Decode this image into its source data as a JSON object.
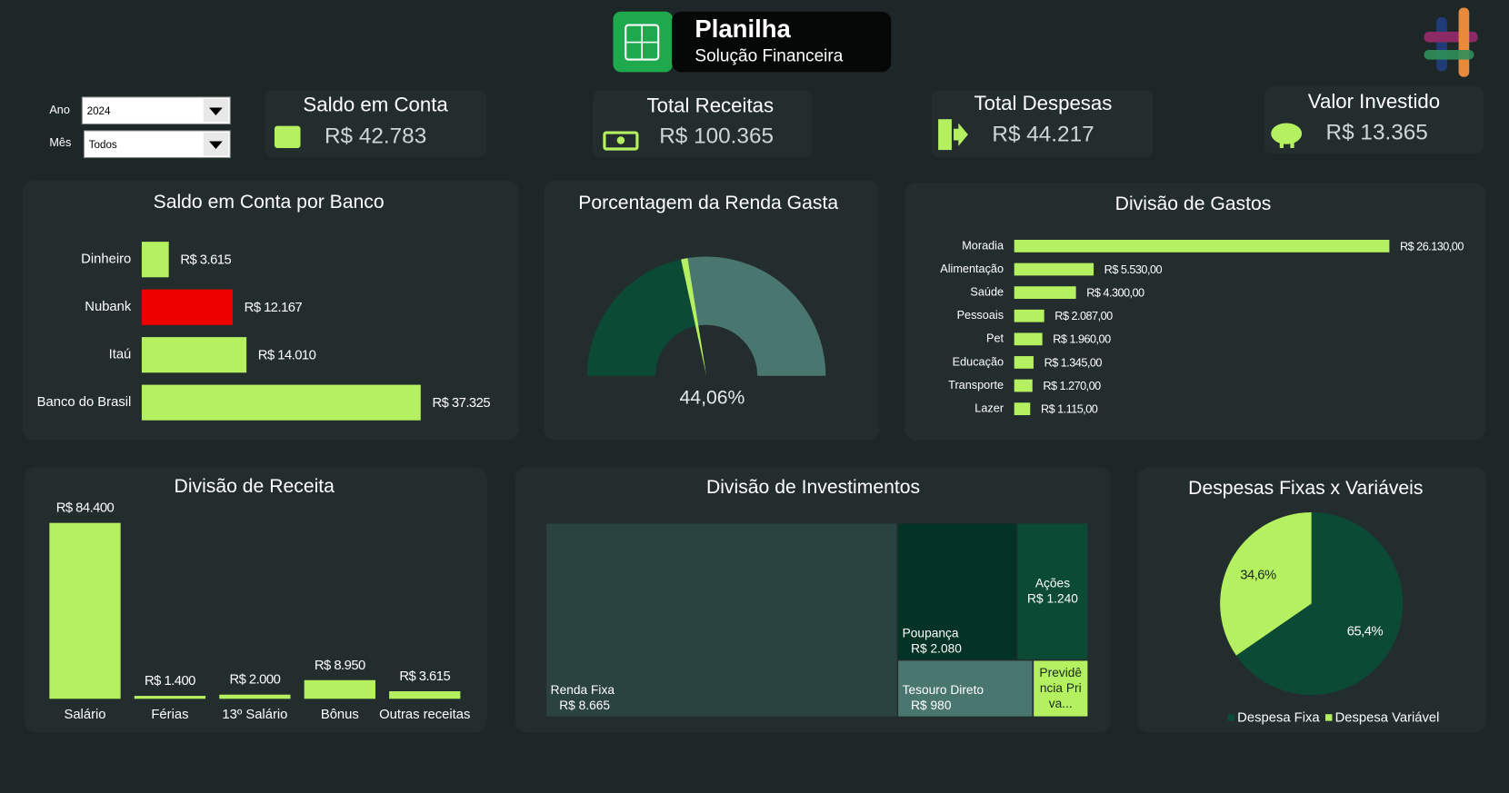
{
  "header": {
    "title": "Planilha",
    "subtitle": "Solução Financeira"
  },
  "filters": [
    {
      "label": "Ano",
      "value": "2024"
    },
    {
      "label": "Mês",
      "value": "Todos"
    }
  ],
  "kpis": [
    {
      "title": "Saldo em Conta",
      "value": "R$ 42.783"
    },
    {
      "title": "Total Receitas",
      "value": "R$ 100.365"
    },
    {
      "title": "Total Despesas",
      "value": "R$ 44.217"
    },
    {
      "title": "Valor Investido",
      "value": "R$ 13.365"
    }
  ],
  "chart_data": [
    {
      "type": "bar",
      "orientation": "horizontal",
      "title": "Saldo em Conta por Banco",
      "categories": [
        "Dinheiro",
        "Nubank",
        "Itaú",
        "Banco do Brasil"
      ],
      "values": [
        3615,
        12167,
        14010,
        37325
      ],
      "value_labels": [
        "R$ 3.615",
        "R$ 12.167",
        "R$ 14.010",
        "R$ 37.325"
      ],
      "colors": [
        "#b4f060",
        "#ee0000",
        "#b4f060",
        "#b4f060"
      ]
    },
    {
      "type": "gauge",
      "title": "Porcentagem da Renda Gasta",
      "value": 44.06,
      "value_label": "44,06%",
      "ylim": [
        0,
        100
      ],
      "colors": [
        "#0b4a35",
        "#4a7670"
      ],
      "needle_color": "#b4f060"
    },
    {
      "type": "bar",
      "orientation": "horizontal",
      "title": "Divisão de Gastos",
      "categories": [
        "Moradia",
        "Alimentação",
        "Saúde",
        "Pessoais",
        "Pet",
        "Educação",
        "Transporte",
        "Lazer"
      ],
      "values": [
        26130,
        5530,
        4300,
        2087,
        1960,
        1345,
        1270,
        1115
      ],
      "value_labels": [
        "R$ 26.130,00",
        "R$ 5.530,00",
        "R$ 4.300,00",
        "R$ 2.087,00",
        "R$ 1.960,00",
        "R$ 1.345,00",
        "R$ 1.270,00",
        "R$ 1.115,00"
      ],
      "color": "#b4f060"
    },
    {
      "type": "bar",
      "orientation": "vertical",
      "title": "Divisão de Receita",
      "categories": [
        "Salário",
        "Férias",
        "13º Salário",
        "Bônus",
        "Outras receitas"
      ],
      "values": [
        84400,
        1400,
        2000,
        8950,
        3615
      ],
      "value_labels": [
        "R$ 84.400",
        "R$ 1.400",
        "R$ 2.000",
        "R$ 8.950",
        "R$ 3.615"
      ],
      "color": "#b4f060"
    },
    {
      "type": "treemap",
      "title": "Divisão de Investimentos",
      "categories": [
        "Renda Fixa",
        "Poupança",
        "Ações",
        "Tesouro Direto",
        "Previdência Priva..."
      ],
      "values": [
        8665,
        2080,
        1240,
        980,
        400
      ],
      "value_labels": [
        "R$ 8.665",
        "R$ 2.080",
        "R$ 1.240",
        "R$ 980",
        null
      ],
      "colors": [
        "#2a4240",
        "#033324",
        "#0b4a35",
        "#4a7670",
        "#b4f060"
      ]
    },
    {
      "type": "pie",
      "title": "Despesas Fixas x Variáveis",
      "categories": [
        "Despesa Fixa",
        "Despesa Variável"
      ],
      "values": [
        65.4,
        34.6
      ],
      "value_labels": [
        "65,4%",
        "34,6%"
      ],
      "colors": [
        "#0b4a35",
        "#b4f060"
      ],
      "legend": "bottom"
    }
  ]
}
